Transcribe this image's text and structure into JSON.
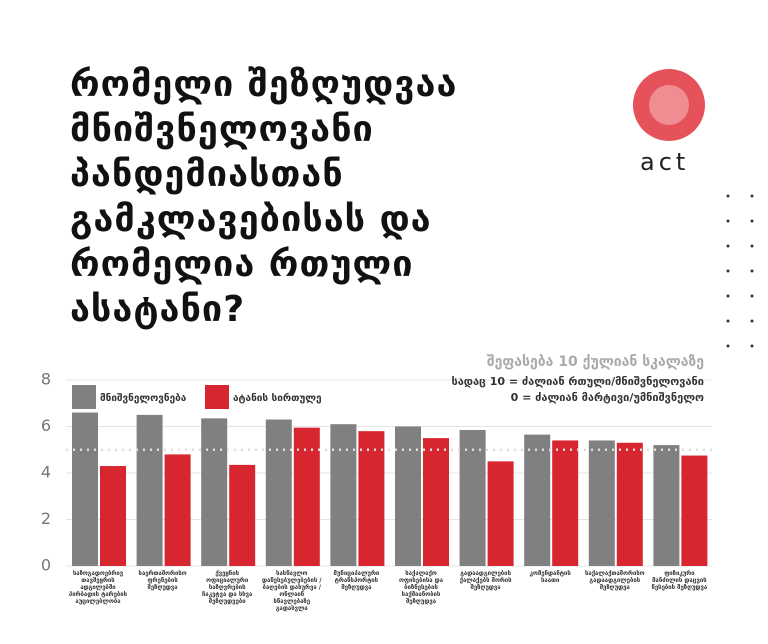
{
  "chart_data": {
    "type": "bar",
    "title": "რომელი შეზღუდვაა მნიშვნელოვანი პანდემიასთან გამკლავებისას და რომელია რთული ასატანი?",
    "brand": "act",
    "scale_note": [
      "შეფასება 10 ქულიან სკალაზე",
      "სადაც 10 = ძალიან რთული/მნიშვნელოვანი",
      "0 = ძალიან მარტივი/უმნიშვნელო"
    ],
    "categories": [
      "საზოგადოებრივ თავშეყრის ადგილებში პირბადის ტარების აუცილებლობა",
      "საერთაშორისო ფრენების შეზღუდვა",
      "ქვეყნის ოფიციალური საზღვრების ჩაკეტვა და სხვა შეზღუდვები",
      "სასწავლო დაწესებულებების / ბაღების დახურვა / ონლაინ სწავლებაზე გადასვლა",
      "მუნიციპალური ტრანსპორტის შეზღუდვა",
      "საქალაქო ოფისებისა და ბიზნესების საქმიანობის შეზღუდვა",
      "გადაადგილების ქალაქებს შორის შეზღუდვა",
      "კომენდანტის საათი",
      "საქალაქთაშორისო გადაადგილების შეზღუდვა",
      "ფიზიკური მანძილის დაცვის წესების შეზღუდვა"
    ],
    "series": [
      {
        "name": "მნიშვნელოვნება",
        "color": "#808080",
        "values": [
          6.6,
          6.5,
          6.35,
          6.3,
          6.1,
          6.0,
          5.85,
          5.65,
          5.4,
          5.2
        ]
      },
      {
        "name": "ატანის სირთულე",
        "color": "#d7262f",
        "values": [
          4.3,
          4.8,
          4.35,
          5.95,
          5.8,
          5.5,
          4.5,
          5.4,
          5.3,
          4.75
        ]
      }
    ],
    "reference_line": 5,
    "ylim": [
      0,
      8
    ],
    "yticks": [
      0,
      2,
      4,
      6,
      8
    ],
    "grid": true
  }
}
